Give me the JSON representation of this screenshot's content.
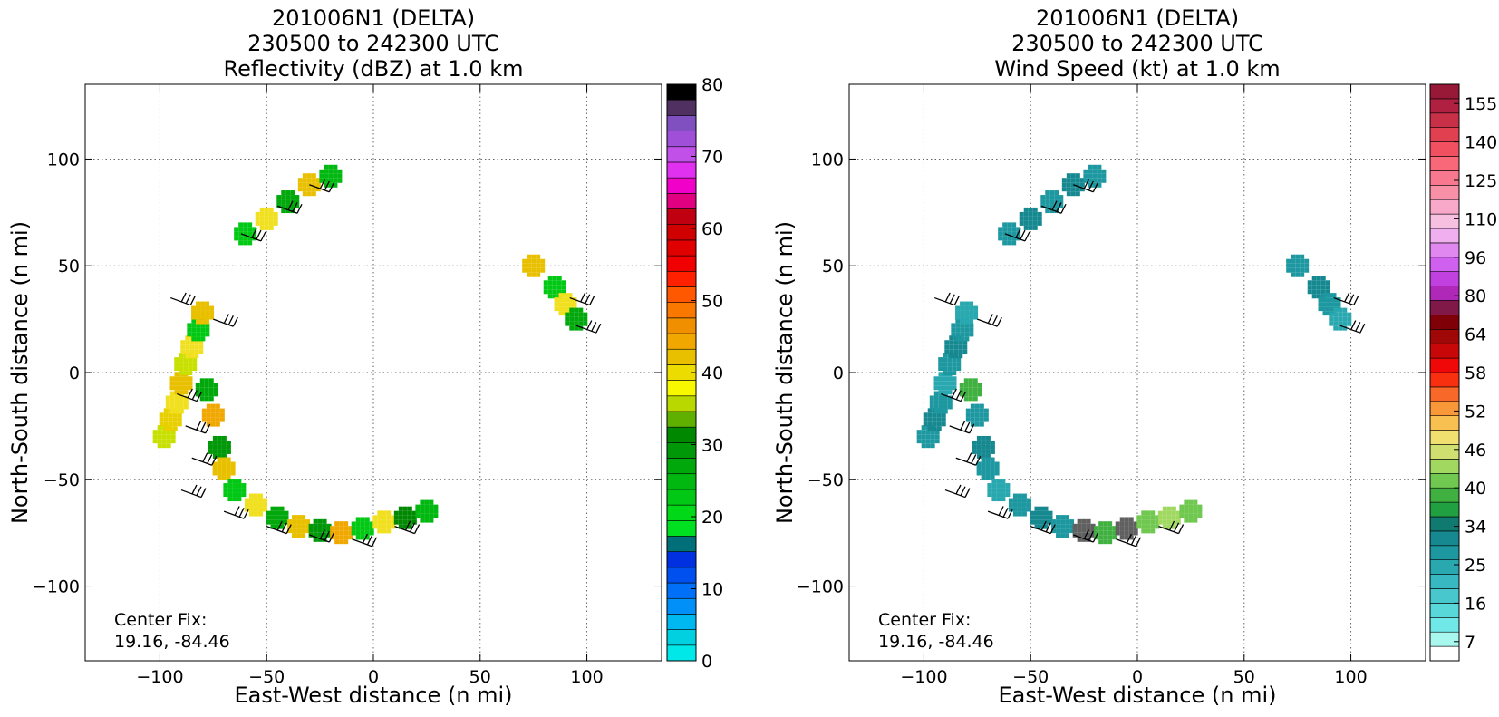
{
  "chart_data": [
    {
      "type": "heatmap",
      "title_lines": [
        "201006N1 (DELTA)",
        "230500 to 242300 UTC",
        "Reflectivity (dBZ) at 1.0 km"
      ],
      "xlabel": "East-West distance (n mi)",
      "ylabel": "North-South distance (n mi)",
      "xlim": [
        -135,
        135
      ],
      "ylim": [
        -135,
        135
      ],
      "xticks": [
        -100,
        -50,
        0,
        50,
        100
      ],
      "yticks": [
        -100,
        -50,
        0,
        50,
        100
      ],
      "xtick_labels": [
        "−100",
        "−50",
        "0",
        "50",
        "100"
      ],
      "ytick_labels": [
        "−100",
        "−50",
        "0",
        "50",
        "100"
      ],
      "grid": true,
      "annotation": [
        "Center Fix:",
        "19.16, -84.46"
      ],
      "colorbar": {
        "label_values": [
          0,
          10,
          20,
          30,
          40,
          50,
          60,
          70,
          80
        ],
        "label_text": [
          "0",
          "10",
          "20",
          "30",
          "40",
          "50",
          "60",
          "70",
          "80"
        ],
        "colors": [
          "#00e8e8",
          "#00d0e0",
          "#00b8f0",
          "#0090f8",
          "#0070f8",
          "#0050f0",
          "#0030e0",
          "#006f7a",
          "#00e020",
          "#00d818",
          "#00c814",
          "#00b810",
          "#00a80c",
          "#009808",
          "#008800",
          "#60b000",
          "#b8d800",
          "#f8f800",
          "#ecdc00",
          "#e8c000",
          "#f0a800",
          "#f09000",
          "#f87800",
          "#ff5800",
          "#ff2000",
          "#f00000",
          "#e00000",
          "#d00000",
          "#c00010",
          "#e00080",
          "#f000c8",
          "#e030f0",
          "#c050e8",
          "#a050d8",
          "#8050c0",
          "#503060",
          "#000000"
        ]
      },
      "series": [
        {
          "field": "reflectivity",
          "points": [
            [
              -98,
              -30,
              "#c8e000"
            ],
            [
              -95,
              -22,
              "#e8d000"
            ],
            [
              -92,
              -14,
              "#f0e020"
            ],
            [
              -90,
              -5,
              "#e8c000"
            ],
            [
              -88,
              4,
              "#c8e000"
            ],
            [
              -85,
              12,
              "#f0e020"
            ],
            [
              -82,
              20,
              "#00c814"
            ],
            [
              -80,
              28,
              "#e8c000"
            ],
            [
              -78,
              -8,
              "#00a80c"
            ],
            [
              -75,
              -20,
              "#f0a800"
            ],
            [
              -72,
              -35,
              "#009808"
            ],
            [
              -70,
              -45,
              "#e8c000"
            ],
            [
              -65,
              -55,
              "#00c814"
            ],
            [
              -55,
              -62,
              "#f0e020"
            ],
            [
              -45,
              -68,
              "#00a80c"
            ],
            [
              -35,
              -72,
              "#e8c000"
            ],
            [
              -25,
              -74,
              "#009808"
            ],
            [
              -15,
              -75,
              "#f0a800"
            ],
            [
              -5,
              -73,
              "#00c814"
            ],
            [
              5,
              -70,
              "#f0e020"
            ],
            [
              15,
              -68,
              "#008800"
            ],
            [
              25,
              -65,
              "#00b810"
            ],
            [
              -60,
              65,
              "#00c814"
            ],
            [
              -50,
              72,
              "#f0e020"
            ],
            [
              -40,
              80,
              "#00a80c"
            ],
            [
              -30,
              88,
              "#e8c000"
            ],
            [
              -20,
              92,
              "#00b810"
            ],
            [
              75,
              50,
              "#e8c000"
            ],
            [
              85,
              40,
              "#00c814"
            ],
            [
              90,
              32,
              "#f0e020"
            ],
            [
              95,
              25,
              "#00a80c"
            ]
          ]
        },
        {
          "field": "wind_barbs",
          "points": [
            [
              -95,
              35
            ],
            [
              -75,
              25
            ],
            [
              -92,
              -10
            ],
            [
              -88,
              -25
            ],
            [
              -85,
              -40
            ],
            [
              -90,
              -55
            ],
            [
              -70,
              -65
            ],
            [
              -50,
              -72
            ],
            [
              -30,
              -76
            ],
            [
              -10,
              -78
            ],
            [
              10,
              -72
            ],
            [
              -62,
              65
            ],
            [
              -45,
              78
            ],
            [
              -30,
              88
            ],
            [
              92,
              35
            ],
            [
              95,
              22
            ]
          ]
        }
      ]
    },
    {
      "type": "heatmap",
      "title_lines": [
        "201006N1 (DELTA)",
        "230500 to 242300 UTC",
        "Wind Speed (kt) at 1.0 km"
      ],
      "xlabel": "East-West distance (n mi)",
      "ylabel": "North-South distance (n mi)",
      "xlim": [
        -135,
        135
      ],
      "ylim": [
        -135,
        135
      ],
      "xticks": [
        -100,
        -50,
        0,
        50,
        100
      ],
      "yticks": [
        -100,
        -50,
        0,
        50,
        100
      ],
      "xtick_labels": [
        "−100",
        "−50",
        "0",
        "50",
        "100"
      ],
      "ytick_labels": [
        "−100",
        "−50",
        "0",
        "50",
        "100"
      ],
      "grid": true,
      "annotation": [
        "Center Fix:",
        "19.16, -84.46"
      ],
      "colorbar": {
        "label_text": [
          "7",
          "16",
          "25",
          "34",
          "40",
          "46",
          "52",
          "58",
          "64",
          "80",
          "96",
          "110",
          "125",
          "140",
          "155"
        ],
        "colors": [
          "#ffffff",
          "#a8f8f0",
          "#70e8e8",
          "#58d8d8",
          "#48c8cc",
          "#38b8c0",
          "#2aa8b0",
          "#1e98a0",
          "#168890",
          "#107a70",
          "#20a040",
          "#40b040",
          "#70c850",
          "#a0d860",
          "#d0e070",
          "#f0e070",
          "#f8c050",
          "#f89838",
          "#f86828",
          "#f83010",
          "#f00808",
          "#c80808",
          "#a00808",
          "#800008",
          "#801848",
          "#b028b8",
          "#c040e0",
          "#d060f0",
          "#e088f0",
          "#f0b0f0",
          "#f8c0e0",
          "#f8a8c8",
          "#f890a8",
          "#f87890",
          "#f86878",
          "#f05060",
          "#e04050",
          "#c83048",
          "#b02040",
          "#981838"
        ]
      },
      "series": [
        {
          "field": "wind_speed",
          "points": [
            [
              -98,
              -30,
              "#1e98a0"
            ],
            [
              -95,
              -22,
              "#168890"
            ],
            [
              -92,
              -14,
              "#1e98a0"
            ],
            [
              -90,
              -5,
              "#2aa8b0"
            ],
            [
              -88,
              4,
              "#1e98a0"
            ],
            [
              -85,
              12,
              "#168890"
            ],
            [
              -82,
              20,
              "#1e98a0"
            ],
            [
              -80,
              28,
              "#2aa8b0"
            ],
            [
              -78,
              -8,
              "#40b040"
            ],
            [
              -75,
              -20,
              "#1e98a0"
            ],
            [
              -72,
              -35,
              "#168890"
            ],
            [
              -70,
              -45,
              "#1e98a0"
            ],
            [
              -65,
              -55,
              "#2aa8b0"
            ],
            [
              -55,
              -62,
              "#1e98a0"
            ],
            [
              -45,
              -68,
              "#168890"
            ],
            [
              -35,
              -72,
              "#1e98a0"
            ],
            [
              -25,
              -74,
              "#606060"
            ],
            [
              -15,
              -75,
              "#40b040"
            ],
            [
              -5,
              -73,
              "#606060"
            ],
            [
              5,
              -70,
              "#70c850"
            ],
            [
              15,
              -68,
              "#a0d860"
            ],
            [
              25,
              -65,
              "#70c850"
            ],
            [
              -60,
              65,
              "#1e98a0"
            ],
            [
              -50,
              72,
              "#168890"
            ],
            [
              -40,
              80,
              "#1e98a0"
            ],
            [
              -30,
              88,
              "#168890"
            ],
            [
              -20,
              92,
              "#1e98a0"
            ],
            [
              75,
              50,
              "#1e98a0"
            ],
            [
              85,
              40,
              "#168890"
            ],
            [
              90,
              32,
              "#1e98a0"
            ],
            [
              95,
              25,
              "#2aa8b0"
            ]
          ]
        },
        {
          "field": "wind_barbs",
          "points": [
            [
              -95,
              35
            ],
            [
              -75,
              25
            ],
            [
              -92,
              -10
            ],
            [
              -88,
              -25
            ],
            [
              -85,
              -40
            ],
            [
              -90,
              -55
            ],
            [
              -70,
              -65
            ],
            [
              -50,
              -72
            ],
            [
              -30,
              -76
            ],
            [
              -10,
              -78
            ],
            [
              10,
              -72
            ],
            [
              -62,
              65
            ],
            [
              -45,
              78
            ],
            [
              -30,
              88
            ],
            [
              92,
              35
            ],
            [
              95,
              22
            ]
          ]
        }
      ]
    }
  ]
}
